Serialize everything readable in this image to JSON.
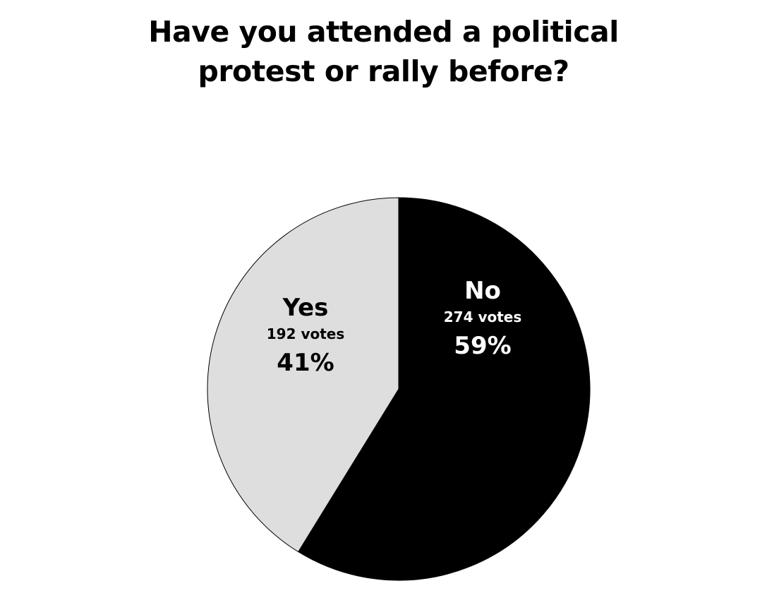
{
  "chart_data": {
    "type": "pie",
    "title_lines": [
      "Have you attended a political",
      "protest or rally before?"
    ],
    "slices": [
      {
        "label": "No",
        "value": 274,
        "votes_text": "274 votes",
        "percent_text": "59%",
        "color": "#000000",
        "text_color": "#ffffff"
      },
      {
        "label": "Yes",
        "value": 192,
        "votes_text": "192 votes",
        "percent_text": "41%",
        "color": "#dedede",
        "text_color": "#000000"
      }
    ],
    "start": "12 o'clock",
    "direction": "clockwise",
    "legend": "none"
  }
}
